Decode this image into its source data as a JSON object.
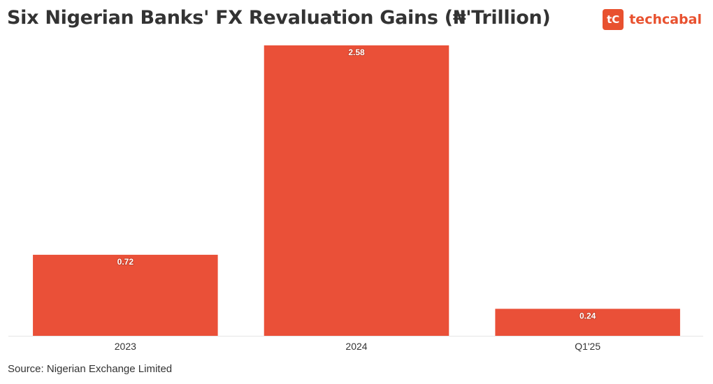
{
  "title": "Six Nigerian Banks' FX Revaluation Gains (₦'Trillion)",
  "logo": {
    "mark": "tC",
    "text": "techcabal",
    "color": "#e8512f"
  },
  "source": "Source: Nigerian Exchange Limited",
  "chart_data": {
    "type": "bar",
    "title": "Six Nigerian Banks' FX Revaluation Gains (₦'Trillion)",
    "categories": [
      "2023",
      "2024",
      "Q1'25"
    ],
    "values": [
      0.72,
      2.58,
      0.24
    ],
    "data_labels": [
      "0.72",
      "2.58",
      "0.24"
    ],
    "xlabel": "",
    "ylabel": "",
    "ylim": [
      0,
      2.58
    ],
    "grid": false,
    "legend": "none",
    "bar_color": "#ea5038",
    "axis_color": "#e6e6e6"
  }
}
